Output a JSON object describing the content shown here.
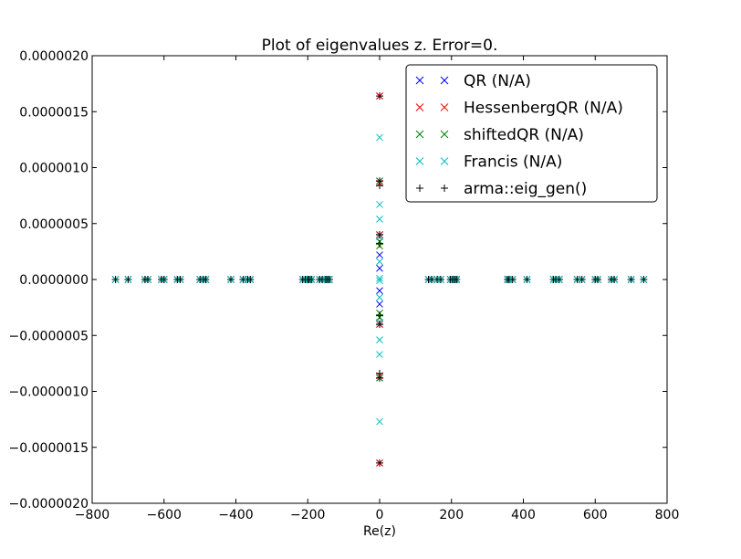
{
  "chart_data": {
    "type": "scatter",
    "title": "Plot of eigenvalues z. Error=0.",
    "xlabel": "Re(z)",
    "ylabel": "",
    "xlim": [
      -800,
      800
    ],
    "ylim": [
      -2e-06,
      2e-06
    ],
    "xticks": [
      -800,
      -600,
      -400,
      -200,
      0,
      200,
      400,
      600,
      800
    ],
    "xtick_labels": [
      "−800",
      "−600",
      "−400",
      "−200",
      "0",
      "200",
      "400",
      "600",
      "800"
    ],
    "yticks": [
      -2e-06,
      -1.5e-06,
      -1e-06,
      -5e-07,
      0,
      5e-07,
      1e-06,
      1.5e-06,
      2e-06
    ],
    "ytick_labels": [
      "−0.0000020",
      "−0.0000015",
      "−0.0000010",
      "−0.0000005",
      "0.0000000",
      "0.0000005",
      "0.0000010",
      "0.0000015",
      "0.0000020"
    ],
    "grid": false,
    "legend_position": "top-right",
    "series": [
      {
        "name": "QR (N/A)",
        "marker": "x",
        "color": "#0000ff",
        "x": [
          -735,
          -700,
          -653,
          -645,
          -607,
          -600,
          -563,
          -555,
          -500,
          -490,
          -484,
          -414,
          -380,
          -367,
          -360,
          -214,
          -207,
          -200,
          -196,
          -190,
          -167,
          -160,
          -150,
          -145,
          -140,
          136,
          145,
          160,
          170,
          197,
          203,
          209,
          214,
          356,
          360,
          370,
          410,
          484,
          490,
          500,
          550,
          563,
          600,
          607,
          645,
          653,
          700,
          735,
          0,
          0,
          0,
          0,
          0,
          0,
          0,
          0,
          0,
          0
        ],
        "y": [
          0,
          0,
          0,
          0,
          0,
          0,
          0,
          0,
          0,
          0,
          0,
          0,
          0,
          0,
          0,
          0,
          0,
          0,
          0,
          0,
          0,
          0,
          0,
          0,
          0,
          0,
          0,
          0,
          0,
          0,
          0,
          0,
          0,
          0,
          0,
          0,
          0,
          0,
          0,
          0,
          0,
          0,
          0,
          0,
          0,
          0,
          0,
          0,
          1.64e-06,
          -1.64e-06,
          8.8e-07,
          -8.8e-07,
          4e-07,
          -4e-07,
          2.2e-07,
          -2.2e-07,
          1e-07,
          -1e-07
        ]
      },
      {
        "name": "HessenbergQR (N/A)",
        "marker": "x",
        "color": "#ff0000",
        "x": [
          -735,
          -700,
          -653,
          -645,
          -607,
          -600,
          -563,
          -555,
          -500,
          -490,
          -484,
          -414,
          -380,
          -367,
          -360,
          -214,
          -207,
          -200,
          -196,
          -190,
          -167,
          -160,
          -150,
          -145,
          -140,
          136,
          145,
          160,
          170,
          197,
          203,
          209,
          214,
          356,
          360,
          370,
          410,
          484,
          490,
          500,
          550,
          563,
          600,
          607,
          645,
          653,
          700,
          735,
          0,
          0,
          0,
          0,
          0,
          0
        ],
        "y": [
          0,
          0,
          0,
          0,
          0,
          0,
          0,
          0,
          0,
          0,
          0,
          0,
          0,
          0,
          0,
          0,
          0,
          0,
          0,
          0,
          0,
          0,
          0,
          0,
          0,
          0,
          0,
          0,
          0,
          0,
          0,
          0,
          0,
          0,
          0,
          0,
          0,
          0,
          0,
          0,
          0,
          0,
          0,
          0,
          0,
          0,
          0,
          0,
          1.64e-06,
          -1.64e-06,
          8.6e-07,
          -8.6e-07,
          4e-07,
          -4e-07
        ]
      },
      {
        "name": "shiftedQR (N/A)",
        "marker": "x",
        "color": "#008000",
        "x": [
          -735,
          -700,
          -653,
          -645,
          -607,
          -600,
          -563,
          -555,
          -500,
          -490,
          -484,
          -414,
          -380,
          -367,
          -360,
          -214,
          -207,
          -200,
          -196,
          -190,
          -167,
          -160,
          -150,
          -145,
          -140,
          136,
          145,
          160,
          170,
          197,
          203,
          209,
          214,
          356,
          360,
          370,
          410,
          484,
          490,
          500,
          550,
          563,
          600,
          607,
          645,
          653,
          700,
          735,
          0,
          0,
          0,
          0,
          0,
          0
        ],
        "y": [
          0,
          0,
          0,
          0,
          0,
          0,
          0,
          0,
          0,
          0,
          0,
          0,
          0,
          0,
          0,
          0,
          0,
          0,
          0,
          0,
          0,
          0,
          0,
          0,
          0,
          0,
          0,
          0,
          0,
          0,
          0,
          0,
          0,
          0,
          0,
          0,
          0,
          0,
          0,
          0,
          0,
          0,
          0,
          0,
          0,
          0,
          0,
          0,
          8.8e-07,
          -8.8e-07,
          3.4e-07,
          -3.4e-07,
          3e-07,
          -3e-07
        ]
      },
      {
        "name": "Francis (N/A)",
        "marker": "x",
        "color": "#00bfbf",
        "x": [
          -735,
          -700,
          -653,
          -645,
          -607,
          -600,
          -563,
          -555,
          -500,
          -490,
          -484,
          -414,
          -380,
          -367,
          -360,
          -214,
          -207,
          -200,
          -196,
          -190,
          -167,
          -160,
          -150,
          -145,
          -140,
          136,
          145,
          160,
          170,
          197,
          203,
          209,
          214,
          356,
          360,
          370,
          410,
          484,
          490,
          500,
          550,
          563,
          600,
          607,
          645,
          653,
          700,
          735,
          0,
          0,
          0,
          0,
          0,
          0,
          0,
          0,
          0,
          0,
          0,
          0
        ],
        "y": [
          0,
          0,
          0,
          0,
          0,
          0,
          0,
          0,
          0,
          0,
          0,
          0,
          0,
          0,
          0,
          0,
          0,
          0,
          0,
          0,
          0,
          0,
          0,
          0,
          0,
          0,
          0,
          0,
          0,
          0,
          0,
          0,
          0,
          0,
          0,
          0,
          0,
          0,
          0,
          0,
          0,
          0,
          0,
          0,
          0,
          0,
          0,
          0,
          1.27e-06,
          -1.27e-06,
          6.7e-07,
          -6.7e-07,
          5.4e-07,
          -5.4e-07,
          3.8e-07,
          -3.8e-07,
          1.6e-07,
          -1.6e-07,
          1e-08,
          -1e-08
        ]
      },
      {
        "name": "arma::eig_gen()",
        "marker": "+",
        "color": "#000000",
        "x": [
          -735,
          -700,
          -653,
          -645,
          -607,
          -600,
          -563,
          -555,
          -500,
          -490,
          -484,
          -414,
          -380,
          -367,
          -360,
          -214,
          -207,
          -200,
          -196,
          -190,
          -167,
          -160,
          -150,
          -145,
          -140,
          136,
          145,
          160,
          170,
          197,
          203,
          209,
          214,
          356,
          360,
          370,
          410,
          484,
          490,
          500,
          550,
          563,
          600,
          607,
          645,
          653,
          700,
          735,
          0,
          0,
          0,
          0,
          0,
          0,
          0,
          0,
          0,
          0
        ],
        "y": [
          0,
          0,
          0,
          0,
          0,
          0,
          0,
          0,
          0,
          0,
          0,
          0,
          0,
          0,
          0,
          0,
          0,
          0,
          0,
          0,
          0,
          0,
          0,
          0,
          0,
          0,
          0,
          0,
          0,
          0,
          0,
          0,
          0,
          0,
          0,
          0,
          0,
          0,
          0,
          0,
          0,
          0,
          0,
          0,
          0,
          0,
          0,
          0,
          1.64e-06,
          -1.64e-06,
          8.8e-07,
          -8.8e-07,
          8.4e-07,
          -8.4e-07,
          4e-07,
          -4e-07,
          3.2e-07,
          -3.2e-07
        ]
      }
    ]
  }
}
